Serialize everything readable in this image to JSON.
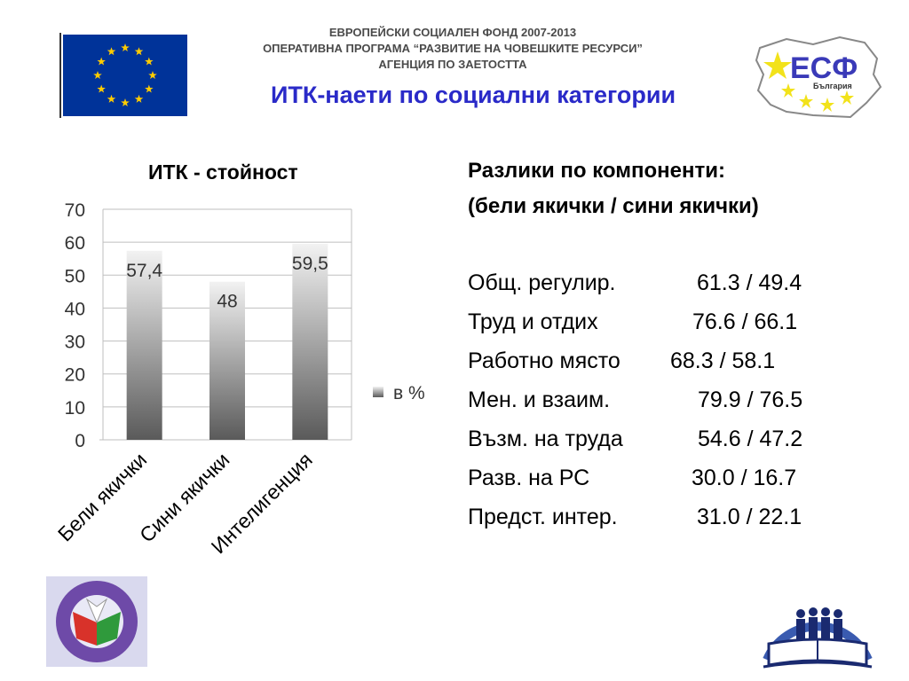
{
  "header": {
    "line1": "ЕВРОПЕЙСКИ СОЦИАЛЕН ФОНД 2007-2013",
    "line2": "ОПЕРАТИВНА ПРОГРАМА “РАЗВИТИЕ НА ЧОВЕШКИТЕ РЕСУРСИ”",
    "line3": "АГЕНЦИЯ ПО ЗАЕТОСТТА"
  },
  "slide_title": "ИТК-наети по социални категории",
  "logos": {
    "esf_text": "ЕСФ",
    "esf_subtext": "България"
  },
  "colors": {
    "title_blue": "#2a2ac8",
    "eu_blue": "#003399",
    "eu_star": "#ffcc00",
    "bar_top": "#f2f2f2",
    "bar_bottom": "#5a5a5a"
  },
  "chart_data": {
    "type": "bar",
    "title": "ИТК - стойност",
    "categories": [
      "Бели якички",
      "Сини якички",
      "Интелигенция"
    ],
    "series": [
      {
        "name": "в %",
        "values": [
          57.4,
          48,
          59.5
        ]
      }
    ],
    "data_labels": [
      "57,4",
      "48",
      "59,5"
    ],
    "ylim": [
      0,
      70
    ],
    "yticks": [
      0,
      10,
      20,
      30,
      40,
      50,
      60,
      70
    ],
    "grid": true,
    "legend": "right"
  },
  "comparison": {
    "heading1": "Разлики по компоненти:",
    "heading2": "(бели якички / сини якички)",
    "rows": [
      {
        "label": "Общ. регулир.",
        "value": "61.3 / 49.4"
      },
      {
        "label": "Труд и отдих",
        "value": "76.6 / 66.1"
      },
      {
        "label": "Работно място",
        "value": "68.3 / 58.1"
      },
      {
        "label": "Мен. и взаим.",
        "value": "79.9 / 76.5"
      },
      {
        "label": "Възм. на труда",
        "value": "54.6 / 47.2"
      },
      {
        "label": "Разв. на РС",
        "value": "30.0 / 16.7"
      },
      {
        "label": "Предст. интер.",
        "value": "31.0 / 22.1"
      }
    ]
  }
}
